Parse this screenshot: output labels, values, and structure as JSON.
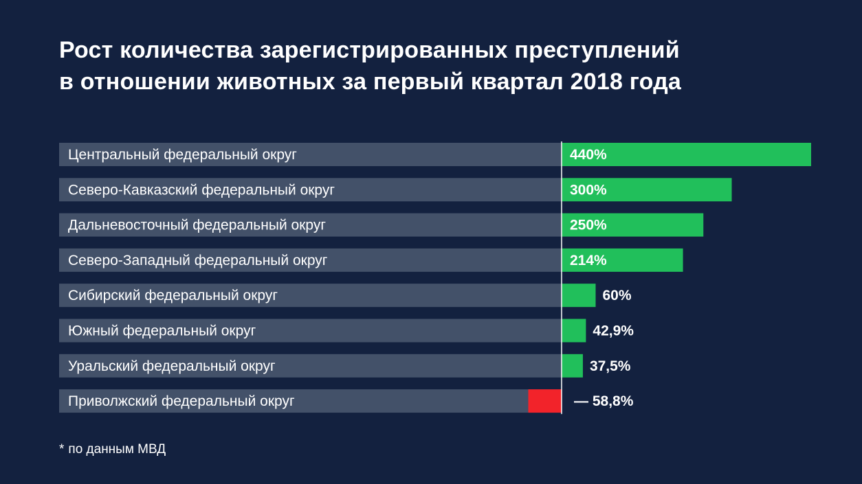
{
  "title_lines": [
    "Рост количества зарегистрированных преступлений",
    "в отношении животных за первый квартал 2018 года"
  ],
  "footnote": {
    "marker": "*",
    "text": "по данным МВД"
  },
  "colors": {
    "background": "#13213f",
    "label_bar": "#435169",
    "positive": "#21bf5b",
    "negative": "#f2232a",
    "text": "#ffffff",
    "axis": "#ffffff"
  },
  "chart_data": {
    "type": "bar",
    "orientation": "horizontal",
    "title": "Рост количества зарегистрированных преступлений в отношении животных за первый квартал 2018 года",
    "unit": "%",
    "categories": [
      "Центральный федеральный округ",
      "Северо-Кавказский федеральный округ",
      "Дальневосточный федеральный округ",
      "Северо-Западный федеральный округ",
      "Сибирский федеральный округ",
      "Южный федеральный округ",
      "Уральский федеральный округ",
      "Приволжский федеральный округ"
    ],
    "values": [
      440,
      300,
      250,
      214,
      60,
      42.9,
      37.5,
      -58.8
    ],
    "value_labels": [
      "440%",
      "300%",
      "250%",
      "214%",
      "60%",
      "42,9%",
      "37,5%",
      "— 58,8%"
    ],
    "xlim": [
      -58.8,
      440
    ],
    "grid": false,
    "legend": "none"
  }
}
